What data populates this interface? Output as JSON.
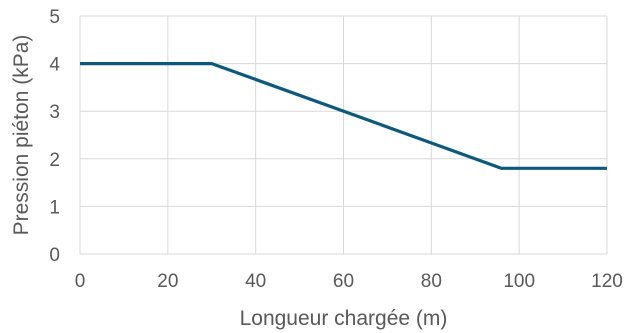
{
  "chart_data": {
    "type": "line",
    "title": "",
    "xlabel": "Longueur chargée (m)",
    "ylabel": "Pression piéton (kPa)",
    "xlim": [
      0,
      120
    ],
    "ylim": [
      0,
      5
    ],
    "x_ticks": [
      0,
      20,
      40,
      60,
      80,
      100,
      120
    ],
    "y_ticks": [
      0,
      1,
      2,
      3,
      4,
      5
    ],
    "grid": true,
    "legend": "none",
    "series": [
      {
        "color": "#0b5a7c",
        "points": [
          {
            "x": 0,
            "y": 4
          },
          {
            "x": 30,
            "y": 4
          },
          {
            "x": 96,
            "y": 1.8
          },
          {
            "x": 120,
            "y": 1.8
          }
        ]
      }
    ]
  }
}
